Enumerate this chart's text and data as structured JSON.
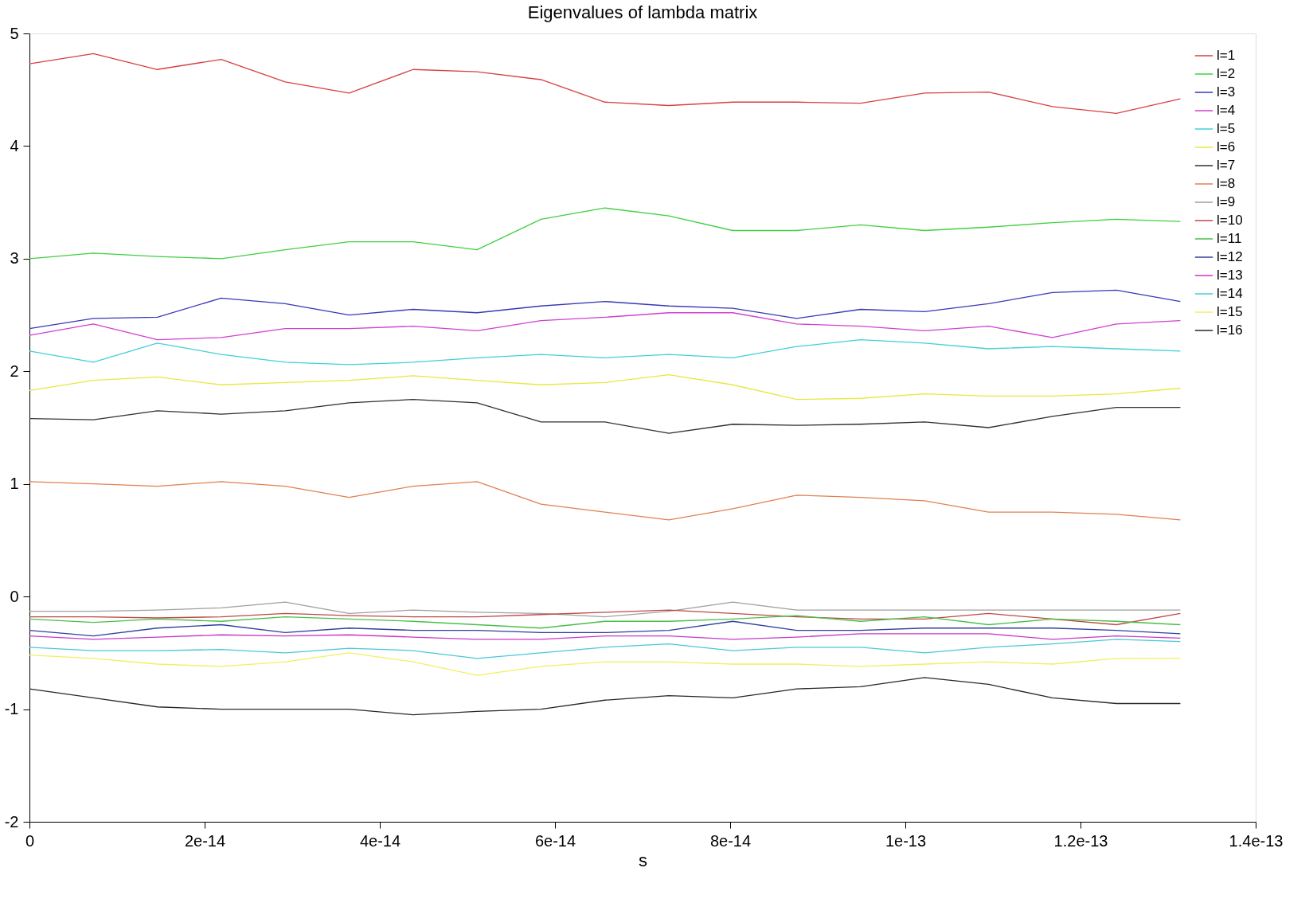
{
  "chart_data": {
    "type": "line",
    "title": "Eigenvalues of lambda matrix",
    "xlabel": "s",
    "x": [
      0,
      7.3e-15,
      1.46e-14,
      2.19e-14,
      2.92e-14,
      3.65e-14,
      4.38e-14,
      5.11e-14,
      5.84e-14,
      6.57e-14,
      7.3e-14,
      8.03e-14,
      8.76e-14,
      9.49e-14,
      1.022e-13,
      1.095e-13,
      1.168e-13,
      1.241e-13,
      1.314e-13
    ],
    "xlim": [
      0,
      1.4e-13
    ],
    "xticks": [
      0,
      {
        "value": 2e-14,
        "label": "2e-14"
      },
      {
        "value": 4e-14,
        "label": "4e-14"
      },
      {
        "value": 6e-14,
        "label": "6e-14"
      },
      {
        "value": 8e-14,
        "label": "8e-14"
      },
      {
        "value": 1e-13,
        "label": "1e-13"
      },
      {
        "value": 1.2e-13,
        "label": "1.2e-13"
      },
      {
        "value": 1.4e-13,
        "label": "1.4e-13"
      }
    ],
    "ylim": [
      -2,
      5
    ],
    "yticks": [
      -2,
      -1,
      0,
      1,
      2,
      3,
      4,
      5
    ],
    "grid": false,
    "legend": "top right",
    "marker": "none",
    "line_style": "solid",
    "series": [
      {
        "name": "l=1",
        "color": "#d84040",
        "values": [
          4.73,
          4.82,
          4.68,
          4.77,
          4.57,
          4.47,
          4.68,
          4.66,
          4.59,
          4.39,
          4.36,
          4.39,
          4.39,
          4.38,
          4.47,
          4.48,
          4.35,
          4.29,
          4.42
        ]
      },
      {
        "name": "l=2",
        "color": "#40d040",
        "values": [
          3.0,
          3.05,
          3.02,
          3.0,
          3.08,
          3.15,
          3.15,
          3.08,
          3.35,
          3.45,
          3.38,
          3.25,
          3.25,
          3.3,
          3.25,
          3.28,
          3.32,
          3.35,
          3.33
        ]
      },
      {
        "name": "l=3",
        "color": "#3838b8",
        "values": [
          2.38,
          2.47,
          2.48,
          2.65,
          2.6,
          2.5,
          2.55,
          2.52,
          2.58,
          2.62,
          2.58,
          2.56,
          2.47,
          2.55,
          2.53,
          2.6,
          2.7,
          2.72,
          2.62
        ]
      },
      {
        "name": "l=4",
        "color": "#d040d0",
        "values": [
          2.32,
          2.42,
          2.28,
          2.3,
          2.38,
          2.38,
          2.4,
          2.36,
          2.45,
          2.48,
          2.52,
          2.52,
          2.42,
          2.4,
          2.36,
          2.4,
          2.3,
          2.42,
          2.45
        ]
      },
      {
        "name": "l=5",
        "color": "#40d0d8",
        "values": [
          2.18,
          2.08,
          2.25,
          2.15,
          2.08,
          2.06,
          2.08,
          2.12,
          2.15,
          2.12,
          2.15,
          2.12,
          2.22,
          2.28,
          2.25,
          2.2,
          2.22,
          2.2,
          2.18
        ]
      },
      {
        "name": "l=6",
        "color": "#e8e840",
        "values": [
          1.83,
          1.92,
          1.95,
          1.88,
          1.9,
          1.92,
          1.96,
          1.92,
          1.88,
          1.9,
          1.97,
          1.88,
          1.75,
          1.76,
          1.8,
          1.78,
          1.78,
          1.8,
          1.85
        ]
      },
      {
        "name": "l=7",
        "color": "#303030",
        "values": [
          1.58,
          1.57,
          1.65,
          1.62,
          1.65,
          1.72,
          1.75,
          1.72,
          1.55,
          1.55,
          1.45,
          1.53,
          1.52,
          1.53,
          1.55,
          1.5,
          1.6,
          1.68,
          1.68
        ]
      },
      {
        "name": "l=8",
        "color": "#e08050",
        "values": [
          1.02,
          1.0,
          0.98,
          1.02,
          0.98,
          0.88,
          0.98,
          1.02,
          0.82,
          0.75,
          0.68,
          0.78,
          0.9,
          0.88,
          0.85,
          0.75,
          0.75,
          0.73,
          0.68
        ]
      },
      {
        "name": "l=9",
        "color": "#a0a0a0",
        "values": [
          -0.13,
          -0.13,
          -0.12,
          -0.1,
          -0.05,
          -0.15,
          -0.12,
          -0.14,
          -0.15,
          -0.18,
          -0.13,
          -0.05,
          -0.12,
          -0.12,
          -0.12,
          -0.12,
          -0.12,
          -0.12,
          -0.12
        ]
      },
      {
        "name": "l=10",
        "color": "#c04848",
        "values": [
          -0.18,
          -0.18,
          -0.19,
          -0.18,
          -0.15,
          -0.17,
          -0.18,
          -0.18,
          -0.16,
          -0.14,
          -0.12,
          -0.15,
          -0.18,
          -0.2,
          -0.2,
          -0.15,
          -0.2,
          -0.25,
          -0.15
        ]
      },
      {
        "name": "l=11",
        "color": "#48c048",
        "values": [
          -0.2,
          -0.23,
          -0.2,
          -0.22,
          -0.18,
          -0.2,
          -0.22,
          -0.25,
          -0.28,
          -0.22,
          -0.22,
          -0.2,
          -0.17,
          -0.22,
          -0.18,
          -0.25,
          -0.2,
          -0.22,
          -0.25
        ]
      },
      {
        "name": "l=12",
        "color": "#3040a0",
        "values": [
          -0.3,
          -0.35,
          -0.28,
          -0.25,
          -0.32,
          -0.28,
          -0.3,
          -0.3,
          -0.32,
          -0.32,
          -0.3,
          -0.22,
          -0.3,
          -0.3,
          -0.28,
          -0.28,
          -0.28,
          -0.3,
          -0.33
        ]
      },
      {
        "name": "l=13",
        "color": "#c838c8",
        "values": [
          -0.35,
          -0.38,
          -0.36,
          -0.34,
          -0.35,
          -0.34,
          -0.36,
          -0.38,
          -0.38,
          -0.35,
          -0.35,
          -0.38,
          -0.36,
          -0.33,
          -0.33,
          -0.33,
          -0.38,
          -0.35,
          -0.37
        ]
      },
      {
        "name": "l=14",
        "color": "#48c8d8",
        "values": [
          -0.45,
          -0.48,
          -0.48,
          -0.47,
          -0.5,
          -0.46,
          -0.48,
          -0.55,
          -0.5,
          -0.45,
          -0.42,
          -0.48,
          -0.45,
          -0.45,
          -0.5,
          -0.45,
          -0.42,
          -0.38,
          -0.4
        ]
      },
      {
        "name": "l=15",
        "color": "#f0f060",
        "values": [
          -0.52,
          -0.55,
          -0.6,
          -0.62,
          -0.58,
          -0.5,
          -0.58,
          -0.7,
          -0.62,
          -0.58,
          -0.58,
          -0.6,
          -0.6,
          -0.62,
          -0.6,
          -0.58,
          -0.6,
          -0.55,
          -0.55
        ]
      },
      {
        "name": "l=16",
        "color": "#282828",
        "values": [
          -0.82,
          -0.9,
          -0.98,
          -1.0,
          -1.0,
          -1.0,
          -1.05,
          -1.02,
          -1.0,
          -0.92,
          -0.88,
          -0.9,
          -0.82,
          -0.8,
          -0.72,
          -0.78,
          -0.9,
          -0.95,
          -0.95
        ]
      }
    ]
  }
}
